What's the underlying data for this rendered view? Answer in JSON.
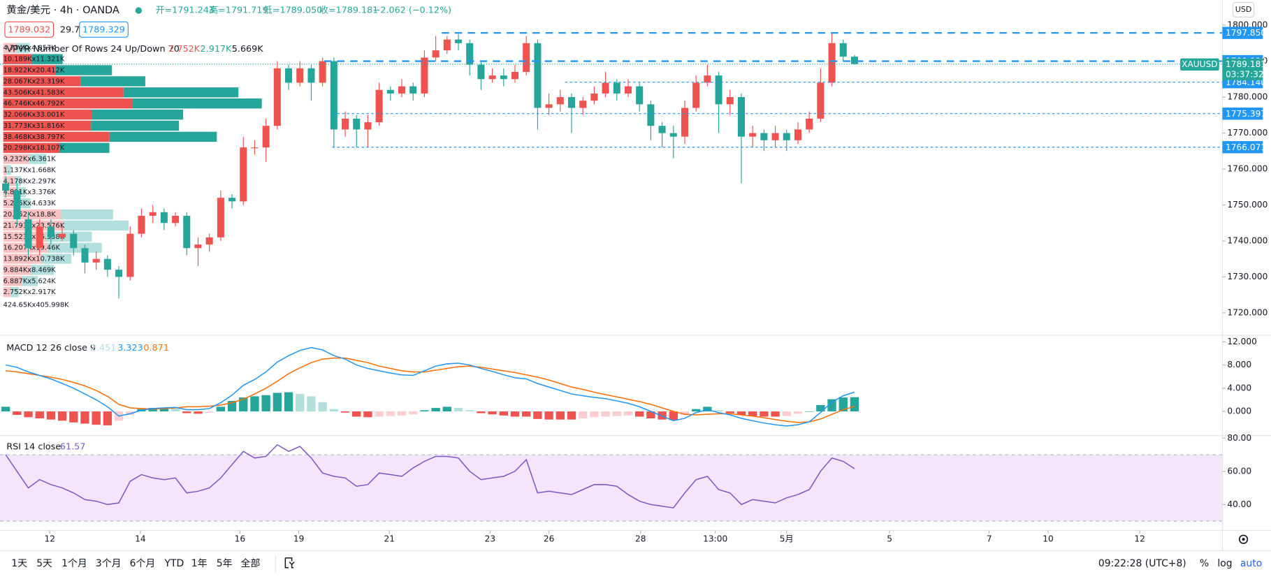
{
  "chart_data": [
    {
      "type": "candlestick",
      "title": "黄金/美元 · 4h · OANDA",
      "ohlc_labels": [
        "开=1791.243",
        "高=1791.719",
        "低=1789.050",
        "收=1789.181",
        "−2.062 (−0.12%)"
      ],
      "quote_labels": [
        "1789.032",
        "29.7",
        "1789.329"
      ],
      "currency": "USD",
      "up_color": "#ef5350",
      "down_color": "#26a69a",
      "open": [
        1756,
        1754,
        1746,
        1738,
        1744,
        1741,
        1742,
        1738,
        1734,
        1735,
        1732,
        1730,
        1742,
        1747,
        1748,
        1745,
        1747,
        1738,
        1739,
        1741,
        1752,
        1751,
        1766,
        1766,
        1772,
        1788,
        1784,
        1788,
        1784,
        1790,
        1771,
        1774,
        1771,
        1773,
        1782,
        1781,
        1783,
        1781,
        1791,
        1793,
        1796,
        1795,
        1789,
        1785,
        1786,
        1785,
        1787,
        1795,
        1777,
        1778,
        1780,
        1777,
        1779,
        1781,
        1784,
        1781,
        1783,
        1778,
        1772,
        1770,
        1769,
        1777,
        1784,
        1786,
        1778,
        1780,
        1769,
        1770,
        1768,
        1770,
        1768,
        1771,
        1774,
        1784,
        1795,
        1791.243
      ],
      "high": [
        1758,
        1756,
        1748,
        1746,
        1746,
        1744,
        1743,
        1739,
        1737,
        1736,
        1733,
        1744,
        1749,
        1750,
        1749,
        1748,
        1748,
        1741,
        1742,
        1754,
        1753,
        1769,
        1768,
        1774,
        1790,
        1789,
        1790,
        1789,
        1791,
        1791,
        1776,
        1775,
        1775,
        1784,
        1783,
        1785,
        1784,
        1793,
        1797,
        1797,
        1797.5,
        1796,
        1790,
        1788,
        1788,
        1789,
        1797,
        1796,
        1781,
        1782,
        1781,
        1780,
        1783,
        1787,
        1785,
        1785,
        1784,
        1779,
        1773,
        1772,
        1779,
        1786,
        1789,
        1787,
        1782,
        1781,
        1772,
        1771,
        1772,
        1771,
        1773,
        1776,
        1788,
        1797.85,
        1796,
        1791.719
      ],
      "low": [
        1752,
        1744,
        1736,
        1736,
        1739,
        1740,
        1736,
        1731,
        1732,
        1730,
        1724,
        1729,
        1741,
        1745,
        1743,
        1744,
        1736,
        1733,
        1737,
        1740,
        1749,
        1750,
        1764,
        1762,
        1771,
        1782,
        1783,
        1779,
        1783,
        1766,
        1769,
        1766,
        1766,
        1772,
        1779,
        1780,
        1779,
        1780,
        1790,
        1792,
        1793,
        1786,
        1782,
        1784,
        1783,
        1784,
        1786,
        1771,
        1775,
        1776,
        1770,
        1775,
        1778,
        1780,
        1779,
        1780,
        1776,
        1768,
        1766,
        1763,
        1767,
        1776,
        1783,
        1770,
        1775,
        1756,
        1766,
        1765,
        1766,
        1765,
        1767,
        1770,
        1773,
        1783,
        1790,
        1789.05
      ],
      "close": [
        1754,
        1746,
        1738,
        1744,
        1741,
        1742,
        1738,
        1734,
        1735,
        1732,
        1730,
        1742,
        1747,
        1748,
        1745,
        1747,
        1738,
        1739,
        1741,
        1752,
        1751,
        1766,
        1766,
        1772,
        1788,
        1784,
        1788,
        1784,
        1790,
        1771,
        1774,
        1771,
        1773,
        1782,
        1781,
        1783,
        1781,
        1791,
        1793,
        1796,
        1795,
        1789,
        1785,
        1786,
        1785,
        1787,
        1795,
        1777,
        1778,
        1780,
        1777,
        1779,
        1781,
        1784,
        1781,
        1783,
        1778,
        1772,
        1770,
        1769,
        1777,
        1784,
        1786,
        1778,
        1780,
        1769,
        1770,
        1768,
        1770,
        1768,
        1771,
        1774,
        1784,
        1795,
        1791.243,
        1789.181
      ],
      "xlim": [
        0,
        108
      ],
      "xticks": [
        {
          "value": 4.4,
          "label": "12"
        },
        {
          "value": 12.4,
          "label": "14"
        },
        {
          "value": 21.2,
          "label": "16"
        },
        {
          "value": 26.4,
          "label": "19"
        },
        {
          "value": 34.4,
          "label": "21"
        },
        {
          "value": 43.3,
          "label": "23"
        },
        {
          "value": 48.5,
          "label": "26"
        },
        {
          "value": 56.6,
          "label": "28"
        },
        {
          "value": 63.2,
          "label": "13:00"
        },
        {
          "value": 69.5,
          "label": "5月"
        },
        {
          "value": 78.6,
          "label": "5"
        },
        {
          "value": 87.4,
          "label": "7"
        },
        {
          "value": 92.6,
          "label": "10"
        },
        {
          "value": 100.7,
          "label": "12"
        }
      ],
      "ylim": [
        1714,
        1807
      ],
      "yticks": [
        {
          "value": 1720,
          "label": "1720.000"
        },
        {
          "value": 1730,
          "label": "1730.000"
        },
        {
          "value": 1740,
          "label": "1740.000"
        },
        {
          "value": 1750,
          "label": "1750.000"
        },
        {
          "value": 1760,
          "label": "1760.000"
        },
        {
          "value": 1770,
          "label": "1770.000"
        },
        {
          "value": 1780,
          "label": "1780.000"
        },
        {
          "value": 1790,
          "label": "1790.000"
        },
        {
          "value": 1800,
          "label": "1800.000"
        }
      ],
      "grid": false,
      "price_lines": [
        {
          "value": 1797.85,
          "label": "1797.850"
        },
        {
          "value": 1789.996,
          "label": "1789.996"
        },
        {
          "value": 1784.14,
          "label": "1784.140"
        },
        {
          "value": 1775.397,
          "label": "1775.397"
        },
        {
          "value": 1766.071,
          "label": "1766.071"
        }
      ],
      "price_line_color": "#2196f3",
      "last_price": {
        "value": 1789.181,
        "label": "1789.181",
        "symbol": "XAUUSD",
        "countdown": "03:37:32",
        "color": "#26a69a"
      },
      "vpvr": {
        "legend": "VPVR Number Of Rows 24 Up/Down 70",
        "legend_values": [
          "2.752K",
          "2.917K",
          "5.669K"
        ],
        "up": [
          4.734,
          10.189,
          18.922,
          28.067,
          43.506,
          46.746,
          32.066,
          31.773,
          38.468,
          20.298,
          9.232,
          1.137,
          4.178,
          4.801,
          5.255,
          20.952,
          21.793,
          15.523,
          16.207,
          13.892,
          9.884,
          6.887,
          2.752
        ],
        "down": [
          4.857,
          11.321,
          20.412,
          23.319,
          41.583,
          46.792,
          33.001,
          31.816,
          38.797,
          18.107,
          6.361,
          1.668,
          2.297,
          3.376,
          4.633,
          18.8,
          23.576,
          16.538,
          19.46,
          10.738,
          8.469,
          5.624,
          2.917
        ],
        "value_labels": [
          "4.734Kx4.857K",
          "10.189Kx11.321K",
          "18.922Kx20.412K",
          "28.067Kx23.319K",
          "43.506Kx41.583K",
          "46.746Kx46.792K",
          "32.066Kx33.001K",
          "31.773Kx31.816K",
          "38.468Kx38.797K",
          "20.298Kx18.107K",
          "9.232Kx6.361K",
          "1.137Kx1.668K",
          "4.178Kx2.297K",
          "4.801Kx3.376K",
          "5.255Kx4.633K",
          "20.952Kx18.8K",
          "21.793Kx23.576K",
          "15.523Kx16.538K",
          "16.207Kx19.46K",
          "13.892Kx10.738K",
          "9.884Kx8.469K",
          "6.887Kx5.624K",
          "2.752Kx2.917K"
        ],
        "total_label": "424.65Kx405.998K"
      }
    },
    {
      "type": "macd",
      "title": "MACD 12 26 close 9",
      "ylim": [
        -4.04,
        12.98
      ],
      "yticks": [
        {
          "value": 0,
          "label": "0.000"
        },
        {
          "value": 4,
          "label": "4.000"
        },
        {
          "value": 8,
          "label": "8.000"
        },
        {
          "value": 12,
          "label": "12.000"
        }
      ],
      "histogram": {
        "colors": [
          "#26a69a",
          "#b2dfdb",
          "#ef5350",
          "#ffcdd2"
        ],
        "values": [
          0.8,
          -0.6,
          -1.0,
          -1.2,
          -1.4,
          -1.6,
          -1.9,
          -2.1,
          -2.3,
          -2.4,
          -1.6,
          -0.6,
          0.4,
          0.6,
          0.6,
          0.5,
          -0.3,
          -0.4,
          -0.2,
          0.8,
          1.8,
          2.4,
          2.6,
          2.8,
          3.2,
          3.3,
          3.0,
          2.6,
          1.6,
          0.4,
          -0.2,
          -0.9,
          -1.0,
          -0.9,
          -0.8,
          -0.7,
          -0.5,
          0.2,
          0.6,
          0.8,
          0.6,
          0.2,
          -0.3,
          -0.5,
          -0.7,
          -0.9,
          -0.9,
          -1.3,
          -1.4,
          -1.4,
          -1.4,
          -1.2,
          -1.0,
          -0.9,
          -0.8,
          -0.7,
          -0.9,
          -1.2,
          -1.4,
          -1.5,
          -0.6,
          0.4,
          0.8,
          0.2,
          -0.3,
          -0.6,
          -0.8,
          -0.9,
          -0.9,
          -0.8,
          -0.4,
          0.0,
          1.1,
          2.1,
          2.4,
          2.451
        ]
      },
      "macd": {
        "color": "#2196f3",
        "values": [
          8.0,
          7.6,
          6.8,
          6.2,
          5.6,
          4.8,
          4.0,
          3.0,
          2.0,
          0.8,
          -0.8,
          -0.4,
          0.2,
          0.5,
          0.6,
          0.7,
          0.3,
          0.3,
          0.5,
          1.5,
          2.8,
          4.5,
          5.5,
          6.8,
          8.5,
          9.6,
          10.5,
          11.0,
          10.6,
          9.6,
          9.0,
          8.0,
          7.4,
          7.0,
          6.6,
          6.3,
          6.2,
          7.0,
          7.8,
          8.2,
          8.3,
          8.0,
          7.4,
          6.9,
          6.3,
          5.8,
          5.6,
          4.8,
          4.2,
          3.6,
          3.0,
          2.7,
          2.4,
          2.2,
          1.8,
          1.4,
          0.8,
          0.0,
          -0.8,
          -1.6,
          -1.2,
          -0.2,
          0.3,
          -0.2,
          -0.6,
          -1.2,
          -1.6,
          -2.0,
          -2.3,
          -2.5,
          -2.3,
          -1.8,
          -0.2,
          1.6,
          2.7,
          3.323
        ]
      },
      "signal": {
        "color": "#ff6d00",
        "values": [
          7.0,
          6.8,
          6.5,
          6.2,
          5.9,
          5.5,
          5.0,
          4.4,
          3.6,
          2.6,
          1.2,
          0.6,
          0.5,
          0.4,
          0.5,
          0.6,
          0.8,
          0.8,
          0.9,
          1.1,
          1.5,
          2.1,
          3.0,
          4.0,
          5.2,
          6.5,
          7.5,
          8.4,
          9.0,
          9.2,
          9.2,
          8.8,
          8.4,
          7.8,
          7.4,
          7.0,
          6.8,
          6.8,
          7.1,
          7.4,
          7.7,
          7.8,
          7.6,
          7.3,
          7.0,
          6.7,
          6.3,
          5.9,
          5.4,
          4.8,
          4.2,
          3.8,
          3.3,
          2.9,
          2.5,
          2.1,
          1.7,
          1.2,
          0.6,
          0.0,
          -0.5,
          -0.6,
          -0.5,
          -0.4,
          -0.4,
          -0.6,
          -0.8,
          -1.1,
          -1.4,
          -1.7,
          -1.9,
          -1.8,
          -1.3,
          -0.5,
          0.3,
          0.871
        ]
      }
    },
    {
      "type": "line",
      "title": "RSI 14 close",
      "color": "#7e57c2",
      "band_color": "#f3e5fc",
      "bands": [
        30,
        70
      ],
      "ylim": [
        24.4,
        81
      ],
      "yticks": [
        {
          "value": 40,
          "label": "40.00"
        },
        {
          "value": 60,
          "label": "60.00"
        },
        {
          "value": 80,
          "label": "80.00"
        }
      ],
      "values": [
        70,
        60,
        50,
        55,
        52,
        50,
        47,
        43,
        42,
        40,
        41,
        54,
        58,
        56,
        55,
        56,
        47,
        48,
        50,
        56,
        64,
        72,
        68,
        69,
        76,
        72,
        75,
        68,
        59,
        57,
        56,
        51,
        52,
        59,
        58,
        57,
        62,
        66,
        69,
        69,
        68,
        60,
        55,
        56,
        57,
        60,
        67,
        47,
        48,
        47,
        46,
        49,
        52,
        52,
        51,
        46,
        42,
        40,
        39,
        38,
        47,
        55,
        57,
        49,
        47,
        40,
        43,
        42,
        41,
        44,
        46,
        49,
        60,
        68,
        66,
        61.57
      ]
    }
  ],
  "toolbar": {
    "ranges": [
      "1天",
      "5天",
      "1个月",
      "3个月",
      "6个月",
      "YTD",
      "1年",
      "5年",
      "全部"
    ],
    "clock": "09:22:28 (UTC+8)",
    "options": [
      "%",
      "log",
      "auto"
    ]
  }
}
